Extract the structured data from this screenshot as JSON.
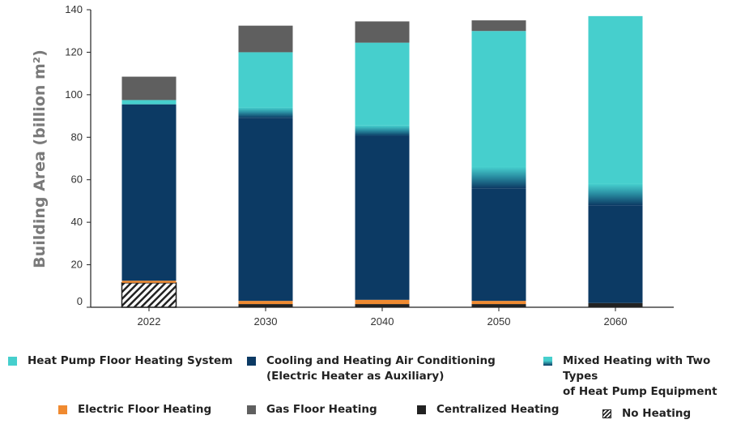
{
  "chart_data": {
    "type": "bar",
    "stacked": true,
    "title": "",
    "xlabel": "",
    "ylabel": "Building Area (billion m²)",
    "ylim": [
      0,
      140
    ],
    "yticks": [
      0,
      20,
      40,
      60,
      80,
      100,
      120,
      140
    ],
    "categories": [
      "2022",
      "2030",
      "2040",
      "2050",
      "2060"
    ],
    "series": [
      {
        "name": "No Heating",
        "color": "#222222",
        "pattern": "hatch",
        "values": [
          11.5,
          0,
          0,
          0,
          0
        ]
      },
      {
        "name": "Centralized Heating",
        "color": "#222222",
        "values": [
          0,
          1.5,
          1.5,
          1.5,
          2
        ]
      },
      {
        "name": "Electric Floor Heating",
        "color": "#f08a30",
        "values": [
          1,
          1.5,
          2,
          1.5,
          0
        ]
      },
      {
        "name": "Cooling and Heating Air Conditioning (Electric Heater as Auxiliary)",
        "color": "#0c3a64",
        "values": [
          83,
          86,
          77,
          53,
          46
        ]
      },
      {
        "name": "Mixed Heating with Two Types of Heat Pump Equipment",
        "color": "#0c3a64",
        "color2": "#46cfcd",
        "values": [
          0,
          5,
          5,
          10,
          10
        ]
      },
      {
        "name": "Heat Pump Floor Heating System",
        "color": "#46cfcd",
        "values": [
          2,
          26,
          39,
          64,
          79
        ]
      },
      {
        "name": "Gas Floor Heating",
        "color": "#5f5f5f",
        "values": [
          11,
          12.5,
          10,
          5,
          0
        ]
      }
    ],
    "grid": false,
    "legend_position": "bottom"
  },
  "legend": {
    "items": [
      {
        "label": "Heat Pump Floor Heating System",
        "icon": "teal-square"
      },
      {
        "label": "Cooling and Heating Air Conditioning\n(Electric Heater as Auxiliary)",
        "icon": "navy-square"
      },
      {
        "label": "Mixed Heating with Two Types\nof Heat Pump Equipment",
        "icon": "gradient-square"
      },
      {
        "label": "Electric Floor Heating",
        "icon": "orange-square"
      },
      {
        "label": "Gas Floor Heating",
        "icon": "gray-square"
      },
      {
        "label": "Centralized Heating",
        "icon": "black-square"
      },
      {
        "label": "No Heating",
        "icon": "hatched-square"
      }
    ]
  }
}
